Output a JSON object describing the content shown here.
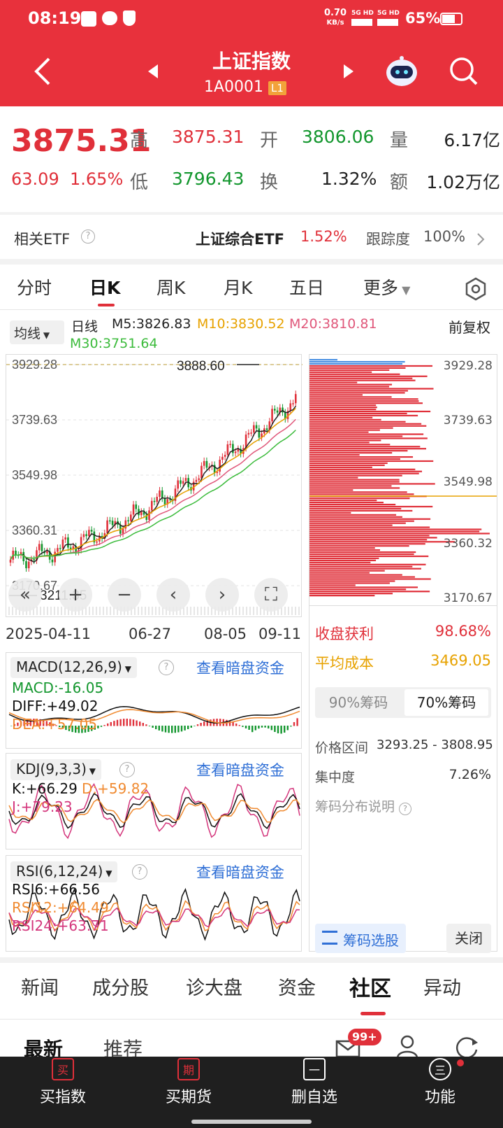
{
  "status": {
    "time": "08:19",
    "speed": "0.70",
    "speed_unit": "KB/s",
    "net1": "5G HD",
    "net2": "5G HD",
    "battery": "65%"
  },
  "header": {
    "title": "上证指数",
    "code": "1A0001",
    "level": "L1"
  },
  "quote": {
    "price": "3875.31",
    "change": "63.09",
    "change_pct": "1.65%",
    "high_label": "高",
    "high": "3875.31",
    "open_label": "开",
    "open": "3806.06",
    "vol_label": "量",
    "vol": "6.17亿",
    "low_label": "低",
    "low": "3796.43",
    "turn_label": "换",
    "turn": "1.32%",
    "amt_label": "额",
    "amt": "1.02万亿"
  },
  "etf": {
    "label": "相关ETF",
    "name": "上证综合ETF",
    "pct": "1.52%",
    "track_label": "跟踪度",
    "track": "100%"
  },
  "tabs": [
    "分时",
    "日K",
    "周K",
    "月K",
    "五日",
    "更多"
  ],
  "active_tab": "日K",
  "ma": {
    "selector": "均线",
    "period": "日线",
    "m5": "M5:3826.83",
    "m10": "M10:3830.52",
    "m20": "M20:3810.81",
    "m30": "M30:3751.64",
    "adjust": "前复权"
  },
  "kchart": {
    "y_labels": [
      "3929.28",
      "3739.63",
      "3549.98",
      "3360.31",
      "3170.67"
    ],
    "x_labels": [
      "2025-04-11",
      "06-27",
      "08-05",
      "09-11"
    ],
    "max_note": "3888.60",
    "min_note": "3211.35"
  },
  "chip": {
    "y_labels": [
      "3929.28",
      "3739.63",
      "3549.98",
      "3360.32",
      "3170.67"
    ],
    "profit_label": "收盘获利",
    "profit": "98.68%",
    "cost_label": "平均成本",
    "cost": "3469.05",
    "tab90": "90%筹码",
    "tab70": "70%筹码",
    "range_label": "价格区间",
    "range": "3293.25 - 3808.95",
    "conc_label": "集中度",
    "conc": "7.26%",
    "explain": "筹码分布说明",
    "select_btn": "筹码选股",
    "close_btn": "关闭"
  },
  "macd": {
    "title": "MACD(12,26,9)",
    "link": "查看暗盘资金",
    "macd": "MACD:-16.05",
    "diff": "DIFF:+49.02",
    "dea": "DEA:+57.05"
  },
  "kdj": {
    "title": "KDJ(9,3,3)",
    "link": "查看暗盘资金",
    "k": "K:+66.29",
    "d": "D:+59.82",
    "j": "J:+79.23"
  },
  "rsi": {
    "title": "RSI(6,12,24)",
    "link": "查看暗盘资金",
    "r6": "RSI6:+66.56",
    "r12": "RSI12:+64.49",
    "r24": "RSI24:+63.71"
  },
  "bottom_tabs": [
    "新闻",
    "成分股",
    "诊大盘",
    "资金",
    "社区",
    "异动"
  ],
  "active_bottom": "社区",
  "feed_tabs": [
    "最新",
    "推荐"
  ],
  "badge": "99+",
  "nav": [
    "买指数",
    "买期货",
    "删自选",
    "功能"
  ],
  "nav_icons": [
    "买",
    "期",
    "一",
    "三"
  ]
}
